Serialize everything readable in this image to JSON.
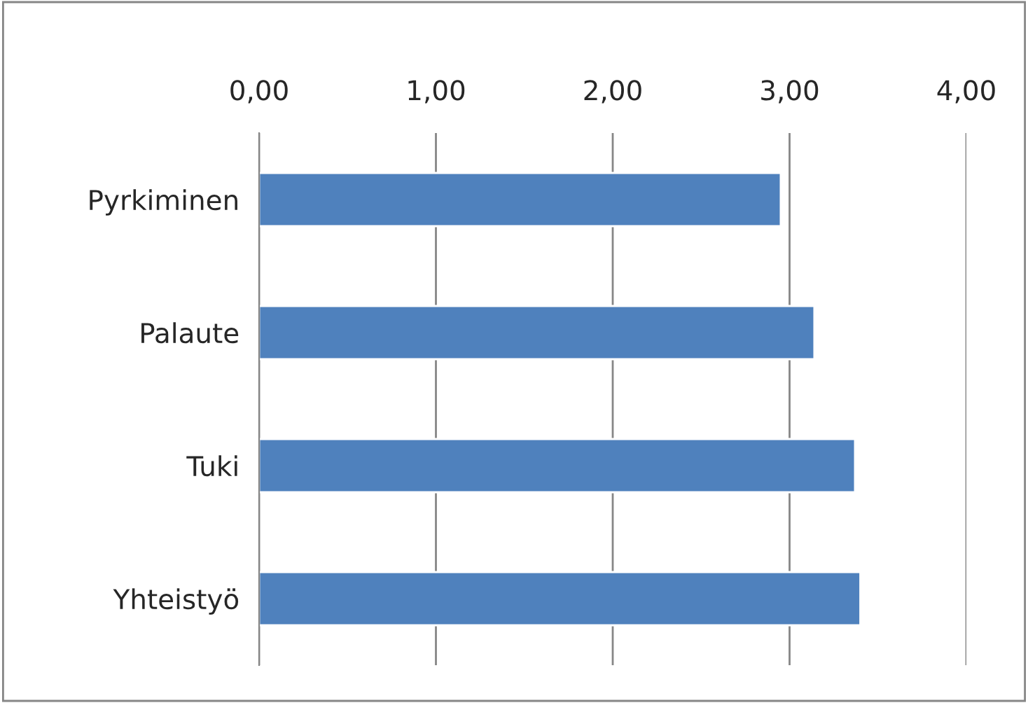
{
  "chart_data": {
    "type": "bar",
    "orientation": "horizontal",
    "categories": [
      "Pyrkiminen",
      "Palaute",
      "Tuki",
      "Yhteistyö"
    ],
    "values": [
      2.95,
      3.14,
      3.37,
      3.4
    ],
    "color": "#4f81bd",
    "xlim": [
      0,
      4
    ],
    "xticks": [
      {
        "value": 0,
        "label": "0,00"
      },
      {
        "value": 1,
        "label": "1,00"
      },
      {
        "value": 2,
        "label": "2,00"
      },
      {
        "value": 3,
        "label": "3,00"
      },
      {
        "value": 4,
        "label": "4,00"
      }
    ],
    "grid": "x",
    "legend": false
  }
}
